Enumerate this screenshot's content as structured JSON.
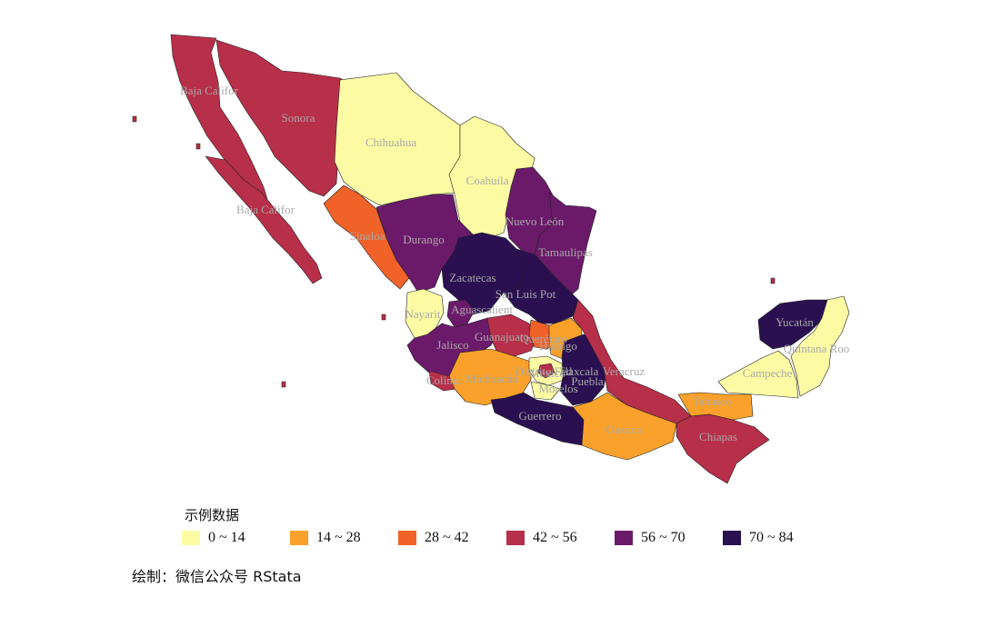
{
  "legend": {
    "title": "示例数据",
    "classes": [
      {
        "label": "0 ~ 14",
        "color": "#fcfba4"
      },
      {
        "label": "14 ~ 28",
        "color": "#f9a12a"
      },
      {
        "label": "28 ~ 42",
        "color": "#f06228"
      },
      {
        "label": "42 ~ 56",
        "color": "#b72f48"
      },
      {
        "label": "56 ~ 70",
        "color": "#6b1a6a"
      },
      {
        "label": "70 ~ 84",
        "color": "#2a1051"
      }
    ]
  },
  "credit": "绘制：微信公众号 RStata",
  "states": [
    {
      "name": "Baja Califor",
      "class": 3
    },
    {
      "name": "Baja Califor",
      "class": 3
    },
    {
      "name": "Sonora",
      "class": 3
    },
    {
      "name": "Chihuahua",
      "class": 0
    },
    {
      "name": "Coahuila",
      "class": 0
    },
    {
      "name": "Nuevo León",
      "class": 4
    },
    {
      "name": "Tamaulipas",
      "class": 4
    },
    {
      "name": "Sinaloa",
      "class": 2
    },
    {
      "name": "Durango",
      "class": 4
    },
    {
      "name": "Zacatecas",
      "class": 5
    },
    {
      "name": "San Luis Pot",
      "class": 5
    },
    {
      "name": "Nayarit",
      "class": 0
    },
    {
      "name": "Aguascalient",
      "class": 4
    },
    {
      "name": "Jalisco",
      "class": 4
    },
    {
      "name": "Guanajuato",
      "class": 3
    },
    {
      "name": "Querétaro",
      "class": 2
    },
    {
      "name": "Hidalgo",
      "class": 1
    },
    {
      "name": "Colima",
      "class": 3
    },
    {
      "name": "Michoacán",
      "class": 1
    },
    {
      "name": "México",
      "class": 0
    },
    {
      "name": "Distrito Fed",
      "class": 3
    },
    {
      "name": "Tlaxcala",
      "class": 4
    },
    {
      "name": "Morelos",
      "class": 0
    },
    {
      "name": "Puebla",
      "class": 5
    },
    {
      "name": "Veracruz",
      "class": 3
    },
    {
      "name": "Guerrero",
      "class": 5
    },
    {
      "name": "Oaxaca",
      "class": 1
    },
    {
      "name": "Tabasco",
      "class": 1
    },
    {
      "name": "Chiapas",
      "class": 3
    },
    {
      "name": "Campeche",
      "class": 0
    },
    {
      "name": "Yucatán",
      "class": 5
    },
    {
      "name": "Quintana Roo",
      "class": 0
    }
  ]
}
